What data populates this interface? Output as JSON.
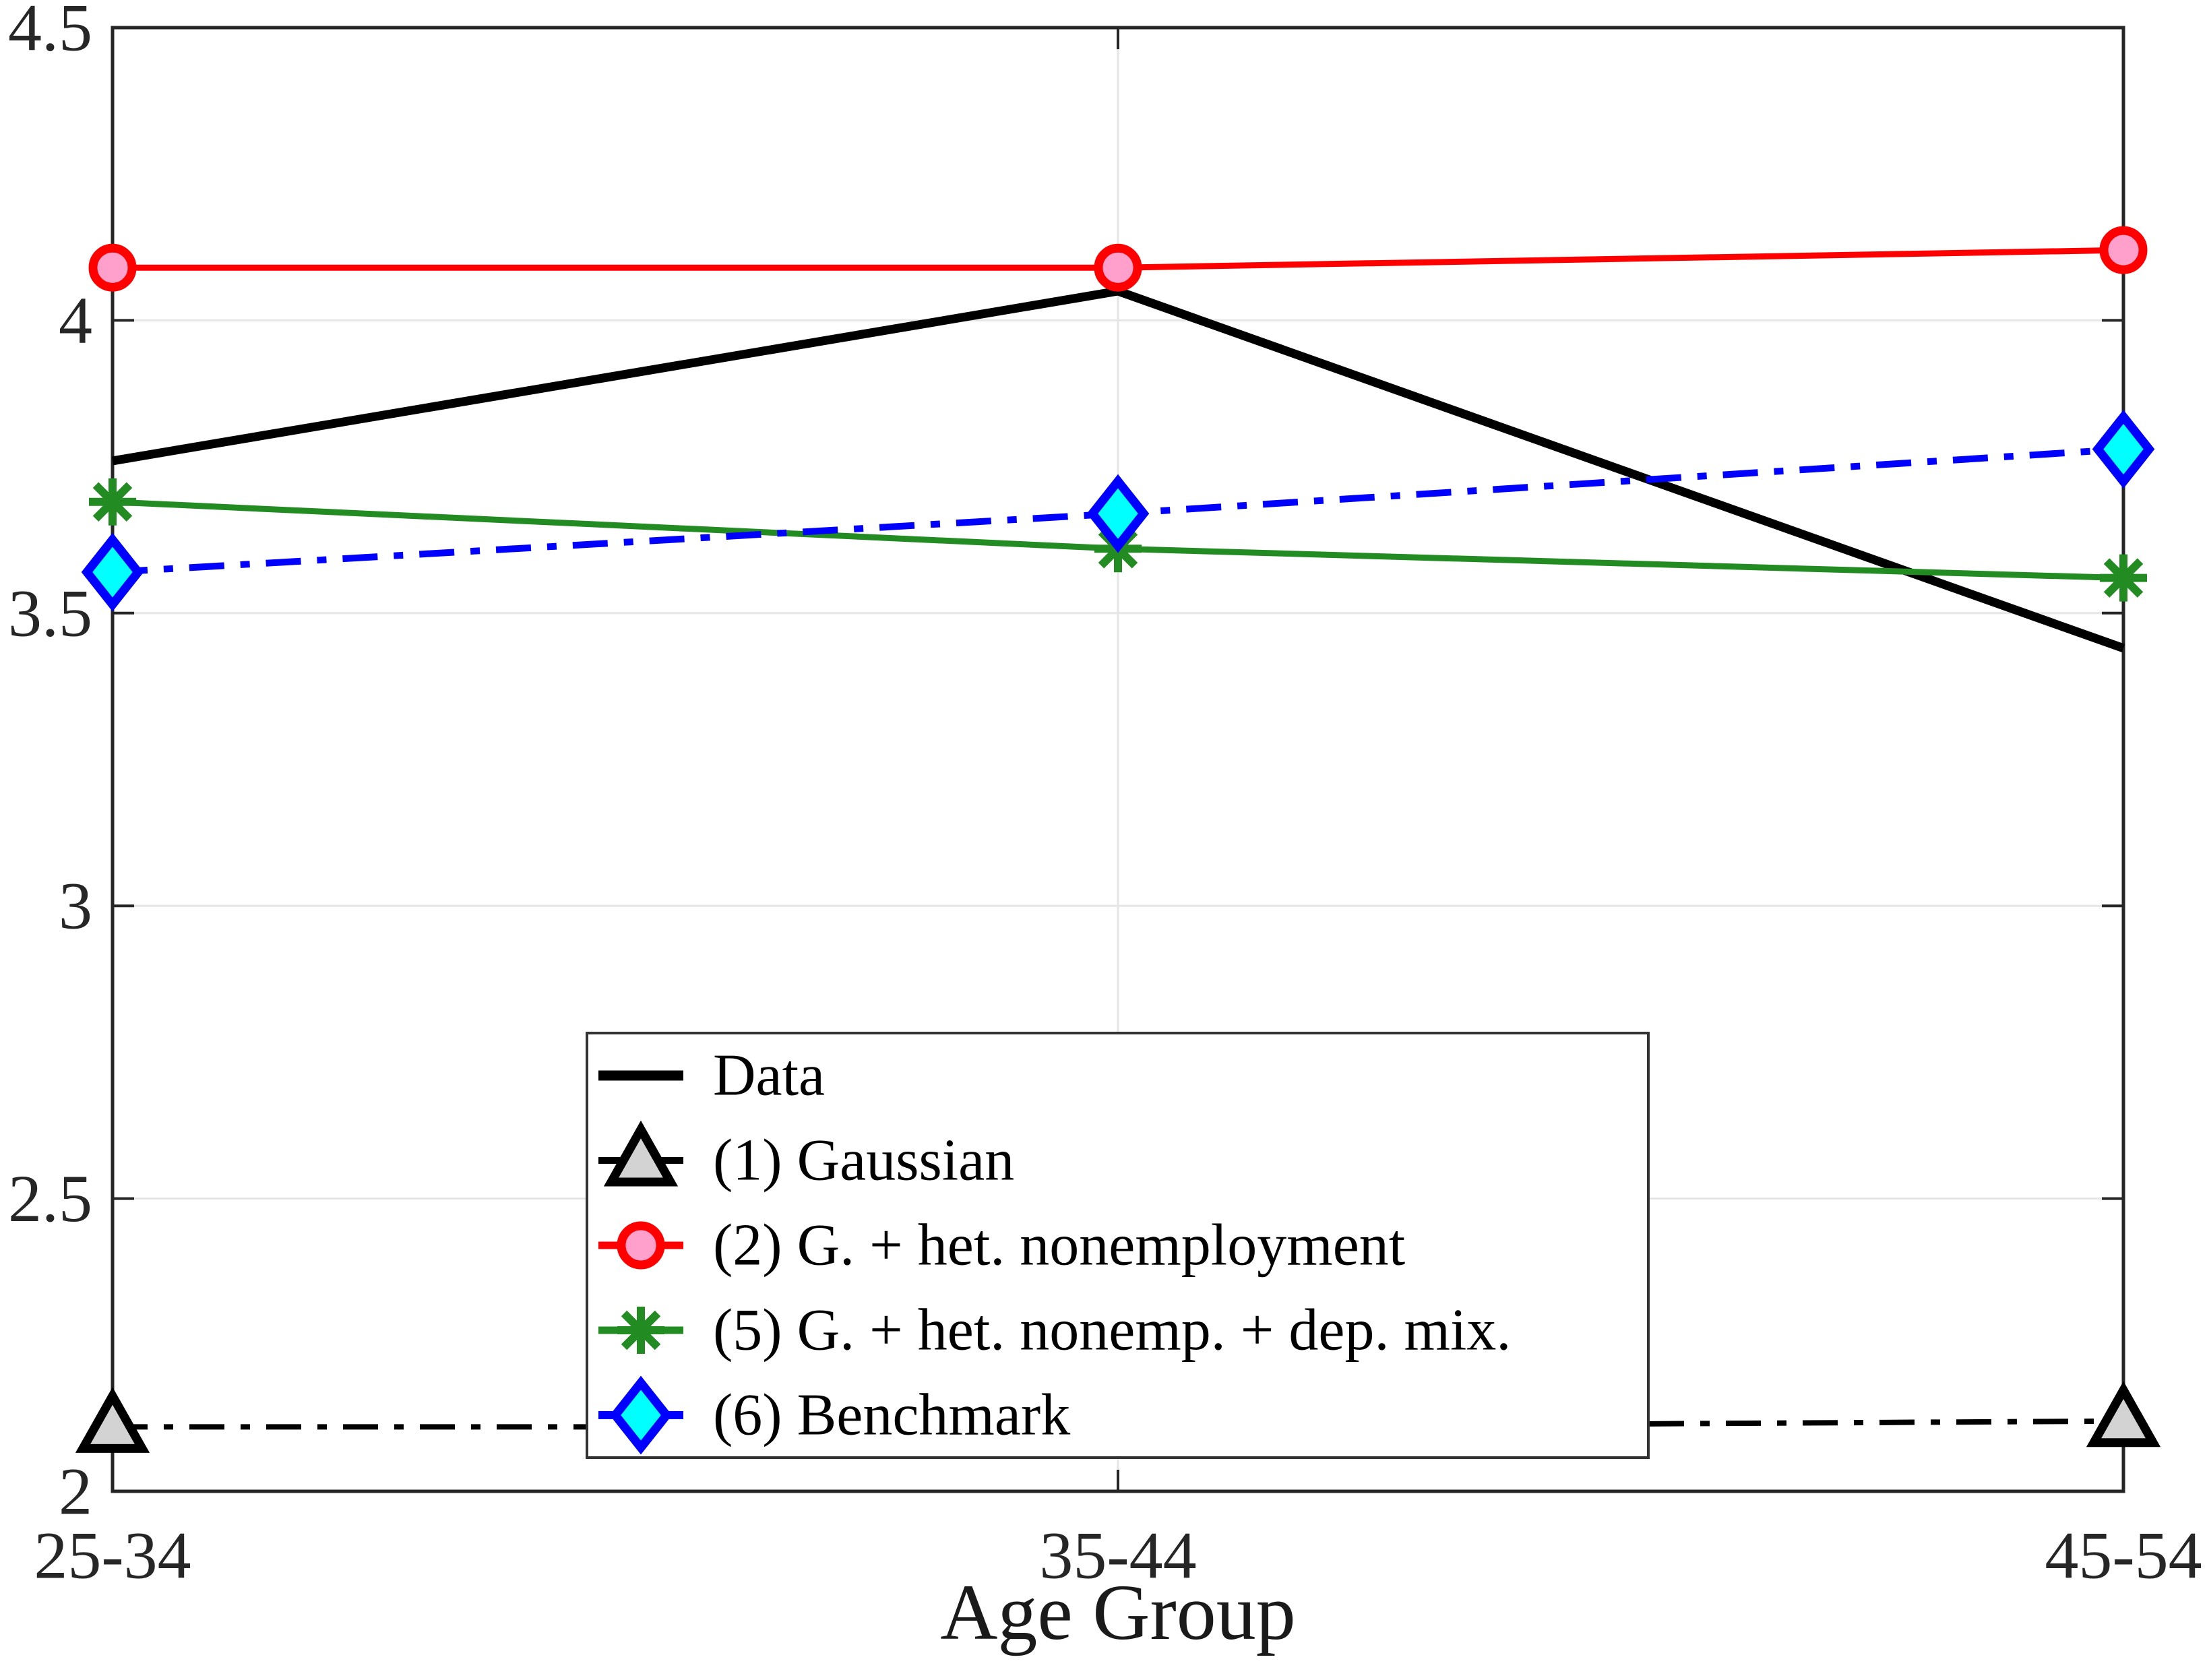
{
  "figure": {
    "background": "#FFFFFF"
  },
  "chart_data": {
    "type": "line",
    "title": "",
    "xlabel": "Age Group",
    "ylabel": "",
    "categories": [
      "25-34",
      "35-44",
      "45-54"
    ],
    "ylim": [
      2,
      4.5
    ],
    "yticks": [
      2,
      2.5,
      3,
      3.5,
      4,
      4.5
    ],
    "ytick_labels": [
      "2",
      "2.5",
      "3",
      "3.5",
      "4",
      "4.5"
    ],
    "grid": true,
    "axis_color": "#262626",
    "grid_color": "#E6E6E6",
    "tick_label_color": "#262626",
    "legend": {
      "position": "inside-bottom-center",
      "border_color": "#333333",
      "background": "#FFFFFF"
    },
    "series": [
      {
        "name": "Data",
        "values": [
          3.76,
          4.05,
          3.44
        ],
        "color": "#000000",
        "line_style": "solid",
        "line_width": 13,
        "marker": "none",
        "marker_fill": "none"
      },
      {
        "name": "(1) Gaussian",
        "values": [
          2.11,
          2.11,
          2.12
        ],
        "color": "#000000",
        "line_style": "dashdot",
        "line_width": 8,
        "marker": "triangle",
        "marker_fill": "#D3D3D3"
      },
      {
        "name": "(2) G. + het. nonemployment",
        "values": [
          4.09,
          4.09,
          4.12
        ],
        "color": "#FF0000",
        "line_style": "solid",
        "line_width": 9,
        "marker": "circle",
        "marker_fill": "#FFA0CC"
      },
      {
        "name": "(5) G. + het. nonemp. + dep. mix.",
        "values": [
          3.69,
          3.61,
          3.56
        ],
        "color": "#228B22",
        "line_style": "solid",
        "line_width": 9,
        "marker": "asterisk",
        "marker_fill": "#228B22"
      },
      {
        "name": "(6) Benchmark",
        "values": [
          3.57,
          3.67,
          3.78
        ],
        "color": "#0000FF",
        "line_style": "dashdot",
        "line_width": 10,
        "marker": "diamond",
        "marker_fill": "#00FFFF"
      }
    ]
  }
}
